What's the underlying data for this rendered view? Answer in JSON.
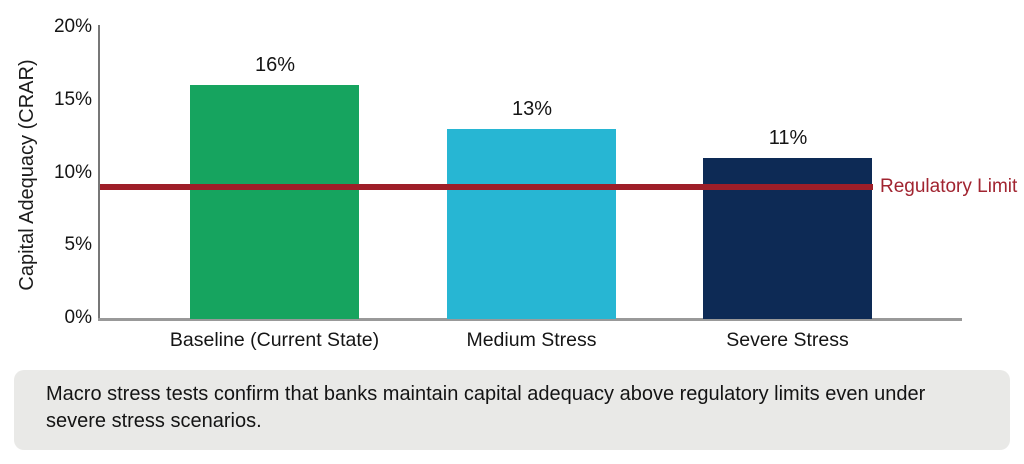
{
  "chart_data": {
    "type": "bar",
    "title": "",
    "ylabel": "Capital Adequacy (CRAR)",
    "xlabel": "",
    "categories": [
      "Baseline (Current State)",
      "Medium Stress",
      "Severe Stress"
    ],
    "values": [
      16,
      13,
      11
    ],
    "value_labels": [
      "16%",
      "13%",
      "11%"
    ],
    "bar_colors": [
      "#16a45f",
      "#27b6d3",
      "#0d2a55"
    ],
    "y_ticks": [
      {
        "value": 20,
        "label": "20%"
      },
      {
        "value": 15,
        "label": "15%"
      },
      {
        "value": 10,
        "label": "10%"
      },
      {
        "value": 5,
        "label": "5%"
      },
      {
        "value": 0,
        "label": "0%"
      }
    ],
    "ylim": [
      0,
      20
    ],
    "grid": false,
    "legend": null,
    "reference_line": {
      "label": "Regulatory Limit",
      "value": 9,
      "line_color": "#9e1e28",
      "label_color": "#a12430"
    }
  },
  "caption": {
    "text": "Macro stress tests confirm that banks maintain capital adequacy above regulatory limits even under severe stress scenarios.",
    "background": "#e9e9e7"
  },
  "colors": {
    "axis_line": "#8c8c8c",
    "text": "#151515",
    "background": "#ffffff"
  }
}
